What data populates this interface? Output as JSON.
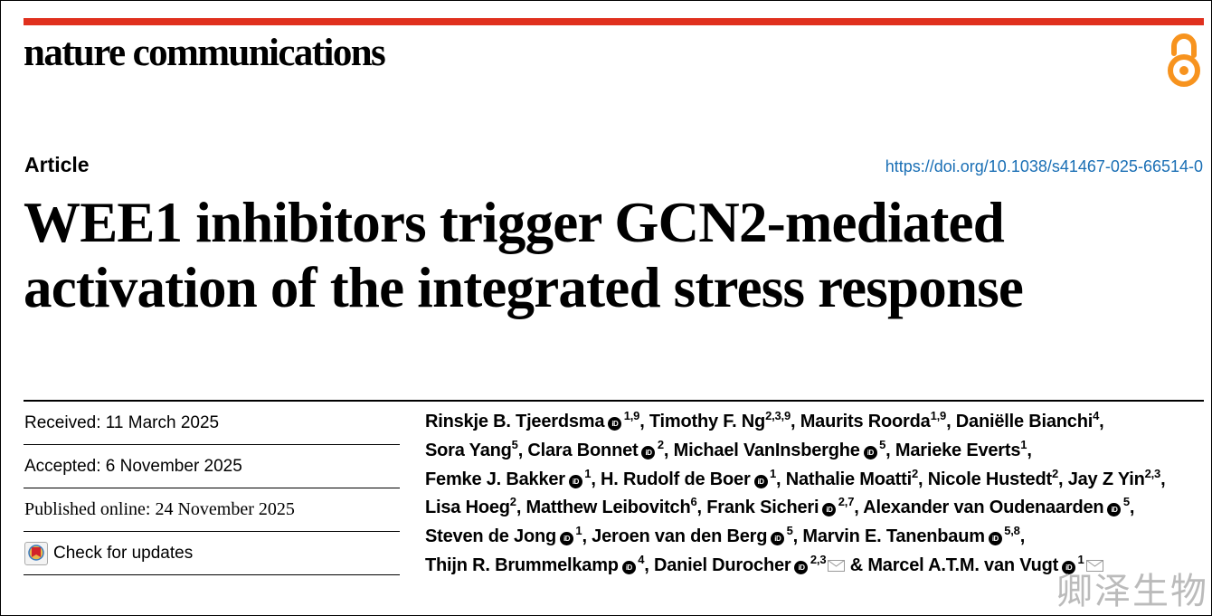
{
  "journal": {
    "name": "nature communications",
    "brand_color": "#e0301e",
    "oa_icon": "open-access-icon",
    "oa_color": "#f7931e"
  },
  "article": {
    "type": "Article",
    "doi": "https://doi.org/10.1038/s41467-025-66514-0",
    "title": "WEE1 inhibitors trigger GCN2-mediated activation of the integrated stress response"
  },
  "dates": {
    "received": "Received: 11 March 2025",
    "accepted": "Accepted: 6 November 2025",
    "published": "Published online: 24 November 2025",
    "check_updates": "Check for updates"
  },
  "authors": [
    {
      "name": "Rinskje B. Tjeerdsma",
      "orcid": true,
      "aff": "1,9",
      "sep": ","
    },
    {
      "name": "Timothy F. Ng",
      "orcid": false,
      "aff": "2,3,9",
      "sep": ","
    },
    {
      "name": "Maurits Roorda",
      "orcid": false,
      "aff": "1,9",
      "sep": ","
    },
    {
      "name": "Daniëlle Bianchi",
      "orcid": false,
      "aff": "4",
      "sep": ","
    },
    {
      "name": "Sora Yang",
      "orcid": false,
      "aff": "5",
      "sep": ","
    },
    {
      "name": "Clara Bonnet",
      "orcid": true,
      "aff": "2",
      "sep": ","
    },
    {
      "name": "Michael VanInsberghe",
      "orcid": true,
      "aff": "5",
      "sep": ","
    },
    {
      "name": "Marieke Everts",
      "orcid": false,
      "aff": "1",
      "sep": ","
    },
    {
      "name": "Femke J. Bakker",
      "orcid": true,
      "aff": "1",
      "sep": ","
    },
    {
      "name": "H. Rudolf de Boer",
      "orcid": true,
      "aff": "1",
      "sep": ","
    },
    {
      "name": "Nathalie Moatti",
      "orcid": false,
      "aff": "2",
      "sep": ","
    },
    {
      "name": "Nicole Hustedt",
      "orcid": false,
      "aff": "2",
      "sep": ","
    },
    {
      "name": "Jay Z Yin",
      "orcid": false,
      "aff": "2,3",
      "sep": ","
    },
    {
      "name": "Lisa Hoeg",
      "orcid": false,
      "aff": "2",
      "sep": ","
    },
    {
      "name": "Matthew Leibovitch",
      "orcid": false,
      "aff": "6",
      "sep": ","
    },
    {
      "name": "Frank Sicheri",
      "orcid": true,
      "aff": "2,7",
      "sep": ","
    },
    {
      "name": "Alexander van Oudenaarden",
      "orcid": true,
      "aff": "5",
      "sep": ","
    },
    {
      "name": "Steven de Jong",
      "orcid": true,
      "aff": "1",
      "sep": ","
    },
    {
      "name": "Jeroen van den Berg",
      "orcid": true,
      "aff": "5",
      "sep": ","
    },
    {
      "name": "Marvin E. Tanenbaum",
      "orcid": true,
      "aff": "5,8",
      "sep": ","
    },
    {
      "name": "Thijn R. Brummelkamp",
      "orcid": true,
      "aff": "4",
      "sep": ","
    },
    {
      "name": "Daniel Durocher",
      "orcid": true,
      "aff": "2,3",
      "mail": true,
      "sep": " &"
    },
    {
      "name": "Marcel A.T.M. van Vugt",
      "orcid": true,
      "aff": "1",
      "mail": true,
      "sep": ""
    }
  ],
  "orcid_label": "iD",
  "watermark": "卿泽生物"
}
